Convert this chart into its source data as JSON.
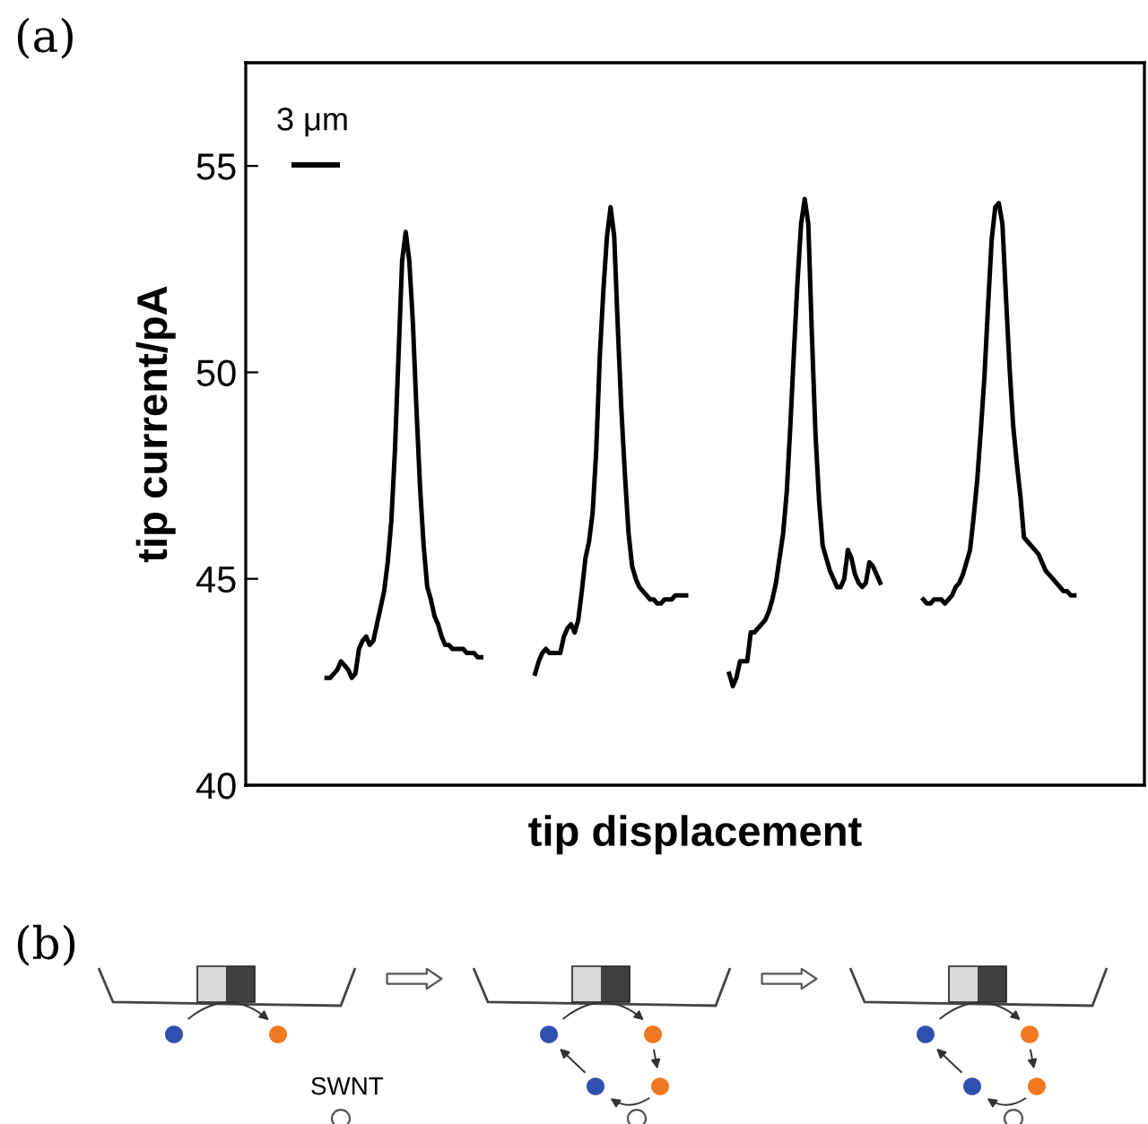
{
  "chart_data": {
    "type": "line",
    "xlabel": "tip displacement",
    "ylabel": "tip current/pA",
    "categories": [
      null,
      null,
      null,
      null,
      null,
      null,
      null,
      null,
      null,
      null,
      null,
      null,
      null,
      null,
      null,
      null,
      null,
      null,
      null,
      null,
      null,
      null,
      null,
      null,
      null,
      null,
      null,
      null,
      null,
      null,
      null,
      null,
      null,
      null,
      null,
      null,
      null,
      null,
      null,
      null,
      null,
      null,
      null,
      null,
      null,
      null,
      null,
      null,
      null,
      null,
      null,
      null,
      null,
      null,
      null,
      null,
      null,
      null,
      null,
      null,
      null,
      null,
      null,
      null,
      null,
      null,
      null,
      null,
      null,
      null,
      null,
      null,
      null,
      null,
      null,
      null,
      null,
      null,
      null,
      null,
      null,
      null,
      null,
      null,
      null,
      null,
      null,
      null,
      null,
      null,
      null,
      null,
      null,
      null,
      null,
      null,
      null,
      null,
      null,
      null,
      null,
      null,
      null,
      null,
      null,
      null,
      null,
      null,
      null,
      null,
      null,
      null,
      null,
      null,
      null,
      null,
      null,
      null,
      null,
      null,
      null,
      null,
      null,
      null,
      null,
      null,
      null,
      null,
      null,
      null,
      null,
      null,
      null,
      null,
      null,
      null,
      null,
      null,
      null,
      null,
      null,
      null,
      null,
      null,
      null,
      null,
      null,
      null,
      null,
      null,
      null,
      null,
      null,
      null,
      null,
      null,
      null,
      null,
      null,
      null,
      null,
      null,
      null,
      null,
      null,
      null,
      null,
      null,
      null,
      null,
      null,
      null,
      null,
      null,
      null,
      null,
      null,
      null,
      null,
      null,
      null,
      null,
      null,
      null,
      null,
      null,
      null,
      null,
      null,
      null,
      null,
      null,
      null,
      null,
      null,
      null,
      null,
      null,
      null,
      null,
      null,
      null,
      null,
      null,
      null,
      null,
      null,
      null,
      null,
      null,
      null,
      null,
      null,
      null,
      null,
      null,
      null,
      null,
      null,
      null,
      null,
      null,
      null,
      null,
      null,
      null,
      null,
      null,
      null,
      null,
      null,
      null,
      null,
      null,
      null,
      null,
      null,
      null,
      null,
      null,
      null,
      null,
      null,
      null,
      null,
      null,
      null,
      null,
      null,
      null
    ],
    "series": [
      {
        "color": "#000000",
        "values": [
          null,
          null,
          null,
          null,
          null,
          null,
          null,
          null,
          null,
          null,
          null,
          null,
          null,
          null,
          null,
          null,
          null,
          null,
          null,
          null,
          null,
          null,
          42.6,
          42.6,
          42.7,
          42.8,
          43.0,
          42.9,
          42.8,
          42.6,
          42.7,
          43.3,
          43.5,
          43.6,
          43.4,
          43.5,
          43.9,
          44.3,
          44.7,
          45.4,
          46.4,
          48.1,
          50.4,
          52.7,
          53.4,
          52.7,
          51.2,
          49.1,
          47.2,
          45.8,
          44.8,
          44.5,
          44.1,
          43.9,
          43.6,
          43.4,
          43.4,
          43.3,
          43.3,
          43.3,
          43.3,
          43.2,
          43.2,
          43.2,
          43.1,
          43.1,
          null,
          null,
          null,
          null,
          null,
          null,
          null,
          null,
          null,
          null,
          null,
          null,
          null,
          null,
          null,
          null,
          null,
          null,
          null,
          null,
          null,
          null,
          null,
          null,
          null,
          null,
          null,
          null,
          null,
          null,
          null,
          null,
          null,
          null,
          null,
          null,
          null,
          null,
          null,
          null,
          null,
          null,
          null,
          null,
          null,
          null,
          null,
          null,
          null,
          null,
          null,
          null,
          null,
          null,
          null,
          null,
          null,
          null,
          null,
          null,
          null,
          null,
          null,
          null,
          null,
          null,
          null,
          null,
          null,
          null,
          null,
          null,
          null,
          null,
          null,
          null,
          null,
          null,
          null,
          null,
          null,
          null,
          null,
          null,
          null,
          null,
          null,
          null,
          null,
          null,
          null,
          null,
          null,
          null,
          null,
          null,
          null,
          null,
          null,
          null,
          null,
          null,
          null,
          null,
          null,
          null,
          null,
          null,
          null,
          null,
          null,
          null,
          null,
          null,
          null,
          null,
          null,
          null,
          null,
          null,
          null,
          null,
          null,
          null,
          null,
          null,
          null,
          null,
          null,
          null,
          null,
          null,
          null,
          null,
          null,
          null,
          null,
          null,
          null,
          null,
          null,
          null,
          null,
          null,
          null,
          null,
          null,
          null,
          null,
          null,
          null,
          null,
          null,
          null,
          null,
          null,
          null,
          null,
          null,
          null,
          null,
          null,
          null,
          null,
          null,
          null,
          null,
          null,
          null,
          null,
          null,
          null,
          null,
          null,
          null,
          null,
          null,
          null,
          null,
          null,
          null,
          null,
          null,
          null
        ]
      },
      {
        "color": "#000000",
        "values": [
          null,
          null,
          null,
          null,
          null,
          null,
          null,
          null,
          null,
          null,
          null,
          null,
          null,
          null,
          null,
          null,
          null,
          null,
          null,
          null,
          null,
          null,
          null,
          null,
          null,
          null,
          null,
          null,
          null,
          null,
          null,
          null,
          null,
          null,
          null,
          null,
          null,
          null,
          null,
          null,
          null,
          null,
          null,
          null,
          null,
          null,
          null,
          null,
          null,
          null,
          null,
          null,
          null,
          null,
          null,
          null,
          null,
          null,
          null,
          null,
          null,
          null,
          null,
          null,
          null,
          null,
          null,
          null,
          null,
          null,
          null,
          null,
          null,
          null,
          null,
          null,
          null,
          null,
          null,
          null,
          42.7,
          43.0,
          43.2,
          43.3,
          43.2,
          43.2,
          43.2,
          43.2,
          43.6,
          43.8,
          43.9,
          43.7,
          44.0,
          44.7,
          45.5,
          45.9,
          46.6,
          48.1,
          50.4,
          52.0,
          53.3,
          54.0,
          53.3,
          51.1,
          49.1,
          47.5,
          46.1,
          45.3,
          45.0,
          44.8,
          44.7,
          44.6,
          44.5,
          44.5,
          44.4,
          44.4,
          44.5,
          44.5,
          44.5,
          44.6,
          44.6,
          44.6,
          44.6,
          null,
          null,
          null,
          null,
          null,
          null,
          null,
          null,
          null,
          null,
          null,
          null,
          null,
          null,
          null,
          null,
          null,
          null,
          null,
          null,
          null,
          null,
          null,
          null,
          null,
          null,
          null,
          null,
          null,
          null,
          null,
          null,
          null,
          null,
          null,
          null,
          null,
          null,
          null,
          null,
          null,
          null,
          null,
          null,
          null,
          null,
          null,
          null,
          null,
          null,
          null,
          null,
          null,
          null,
          null,
          null,
          null,
          null,
          null,
          null,
          null,
          null,
          null,
          null,
          null,
          null,
          null,
          null,
          null,
          null,
          null,
          null,
          null,
          null,
          null,
          null,
          null,
          null,
          null,
          null,
          null,
          null,
          null,
          null,
          null,
          null,
          null,
          null,
          null,
          null,
          null,
          null,
          null,
          null,
          null,
          null,
          null,
          null,
          null,
          null,
          null,
          null,
          null,
          null,
          null,
          null,
          null,
          null,
          null,
          null,
          null,
          null,
          null,
          null,
          null,
          null,
          null,
          null,
          null,
          null,
          null,
          null,
          null,
          null,
          null,
          null,
          null
        ]
      },
      {
        "color": "#000000",
        "values": [
          null,
          null,
          null,
          null,
          null,
          null,
          null,
          null,
          null,
          null,
          null,
          null,
          null,
          null,
          null,
          null,
          null,
          null,
          null,
          null,
          null,
          null,
          null,
          null,
          null,
          null,
          null,
          null,
          null,
          null,
          null,
          null,
          null,
          null,
          null,
          null,
          null,
          null,
          null,
          null,
          null,
          null,
          null,
          null,
          null,
          null,
          null,
          null,
          null,
          null,
          null,
          null,
          null,
          null,
          null,
          null,
          null,
          null,
          null,
          null,
          null,
          null,
          null,
          null,
          null,
          null,
          null,
          null,
          null,
          null,
          null,
          null,
          null,
          null,
          null,
          null,
          null,
          null,
          null,
          null,
          null,
          null,
          null,
          null,
          null,
          null,
          null,
          null,
          null,
          null,
          null,
          null,
          null,
          null,
          null,
          null,
          null,
          null,
          null,
          null,
          null,
          null,
          null,
          null,
          null,
          null,
          null,
          null,
          null,
          null,
          null,
          null,
          null,
          null,
          null,
          null,
          null,
          null,
          null,
          null,
          null,
          null,
          null,
          null,
          null,
          null,
          null,
          null,
          null,
          null,
          null,
          null,
          null,
          null,
          42.7,
          42.4,
          42.6,
          43.0,
          43.0,
          43.0,
          43.7,
          43.7,
          43.8,
          43.9,
          44.0,
          44.2,
          44.5,
          44.9,
          45.5,
          46.1,
          47.1,
          48.7,
          50.5,
          52.2,
          53.6,
          54.2,
          53.6,
          50.9,
          48.5,
          46.9,
          45.8,
          45.5,
          45.2,
          45.0,
          44.8,
          44.8,
          45.0,
          45.7,
          45.5,
          45.1,
          44.9,
          44.8,
          44.9,
          45.4,
          45.3,
          45.1,
          44.9,
          null,
          null,
          null,
          null,
          null,
          null,
          null,
          null,
          null,
          null,
          null,
          null,
          null,
          null,
          null,
          null,
          null,
          null,
          null,
          null,
          null,
          null,
          null,
          null,
          null,
          null,
          null,
          null,
          null,
          null,
          null,
          null,
          null,
          null,
          null,
          null,
          null,
          null,
          null,
          null,
          null,
          null,
          null,
          null,
          null,
          null,
          null,
          null,
          null,
          null,
          null,
          null,
          null,
          null,
          null,
          null,
          null,
          null,
          null,
          null,
          null,
          null,
          null,
          null,
          null,
          null,
          null,
          null,
          null,
          null,
          null,
          null,
          null
        ]
      },
      {
        "color": "#000000",
        "values": [
          null,
          null,
          null,
          null,
          null,
          null,
          null,
          null,
          null,
          null,
          null,
          null,
          null,
          null,
          null,
          null,
          null,
          null,
          null,
          null,
          null,
          null,
          null,
          null,
          null,
          null,
          null,
          null,
          null,
          null,
          null,
          null,
          null,
          null,
          null,
          null,
          null,
          null,
          null,
          null,
          null,
          null,
          null,
          null,
          null,
          null,
          null,
          null,
          null,
          null,
          null,
          null,
          null,
          null,
          null,
          null,
          null,
          null,
          null,
          null,
          null,
          null,
          null,
          null,
          null,
          null,
          null,
          null,
          null,
          null,
          null,
          null,
          null,
          null,
          null,
          null,
          null,
          null,
          null,
          null,
          null,
          null,
          null,
          null,
          null,
          null,
          null,
          null,
          null,
          null,
          null,
          null,
          null,
          null,
          null,
          null,
          null,
          null,
          null,
          null,
          null,
          null,
          null,
          null,
          null,
          null,
          null,
          null,
          null,
          null,
          null,
          null,
          null,
          null,
          null,
          null,
          null,
          null,
          null,
          null,
          null,
          null,
          null,
          null,
          null,
          null,
          null,
          null,
          null,
          null,
          null,
          null,
          null,
          null,
          null,
          null,
          null,
          null,
          null,
          null,
          null,
          null,
          null,
          null,
          null,
          null,
          null,
          null,
          null,
          null,
          null,
          null,
          null,
          null,
          null,
          null,
          null,
          null,
          null,
          null,
          null,
          null,
          null,
          null,
          null,
          null,
          null,
          null,
          null,
          null,
          null,
          null,
          null,
          null,
          null,
          null,
          null,
          null,
          null,
          null,
          null,
          null,
          null,
          null,
          null,
          null,
          null,
          null,
          44.5,
          44.4,
          44.4,
          44.5,
          44.5,
          44.5,
          44.4,
          44.5,
          44.6,
          44.8,
          44.9,
          45.1,
          45.4,
          45.7,
          46.5,
          47.4,
          48.6,
          49.9,
          51.6,
          53.2,
          54.0,
          54.1,
          53.6,
          51.8,
          50.1,
          48.7,
          47.8,
          47.0,
          46.0,
          45.9,
          45.8,
          45.7,
          45.6,
          45.4,
          45.2,
          45.1,
          45.0,
          44.9,
          44.8,
          44.7,
          44.7,
          44.6,
          44.6,
          null,
          null,
          null,
          null,
          null,
          null,
          null,
          null,
          null,
          null,
          null,
          null,
          null,
          null,
          null,
          null,
          null,
          null,
          null
        ]
      }
    ],
    "ylim": [
      40,
      57.5
    ],
    "yticks": [
      40,
      45,
      50,
      55
    ],
    "tick_labels": "y",
    "grid": false,
    "legend": false,
    "marker": "none",
    "line_style": "solid",
    "annotations": [
      "(a)",
      "(b)",
      "SWNT",
      "3 μm"
    ]
  }
}
